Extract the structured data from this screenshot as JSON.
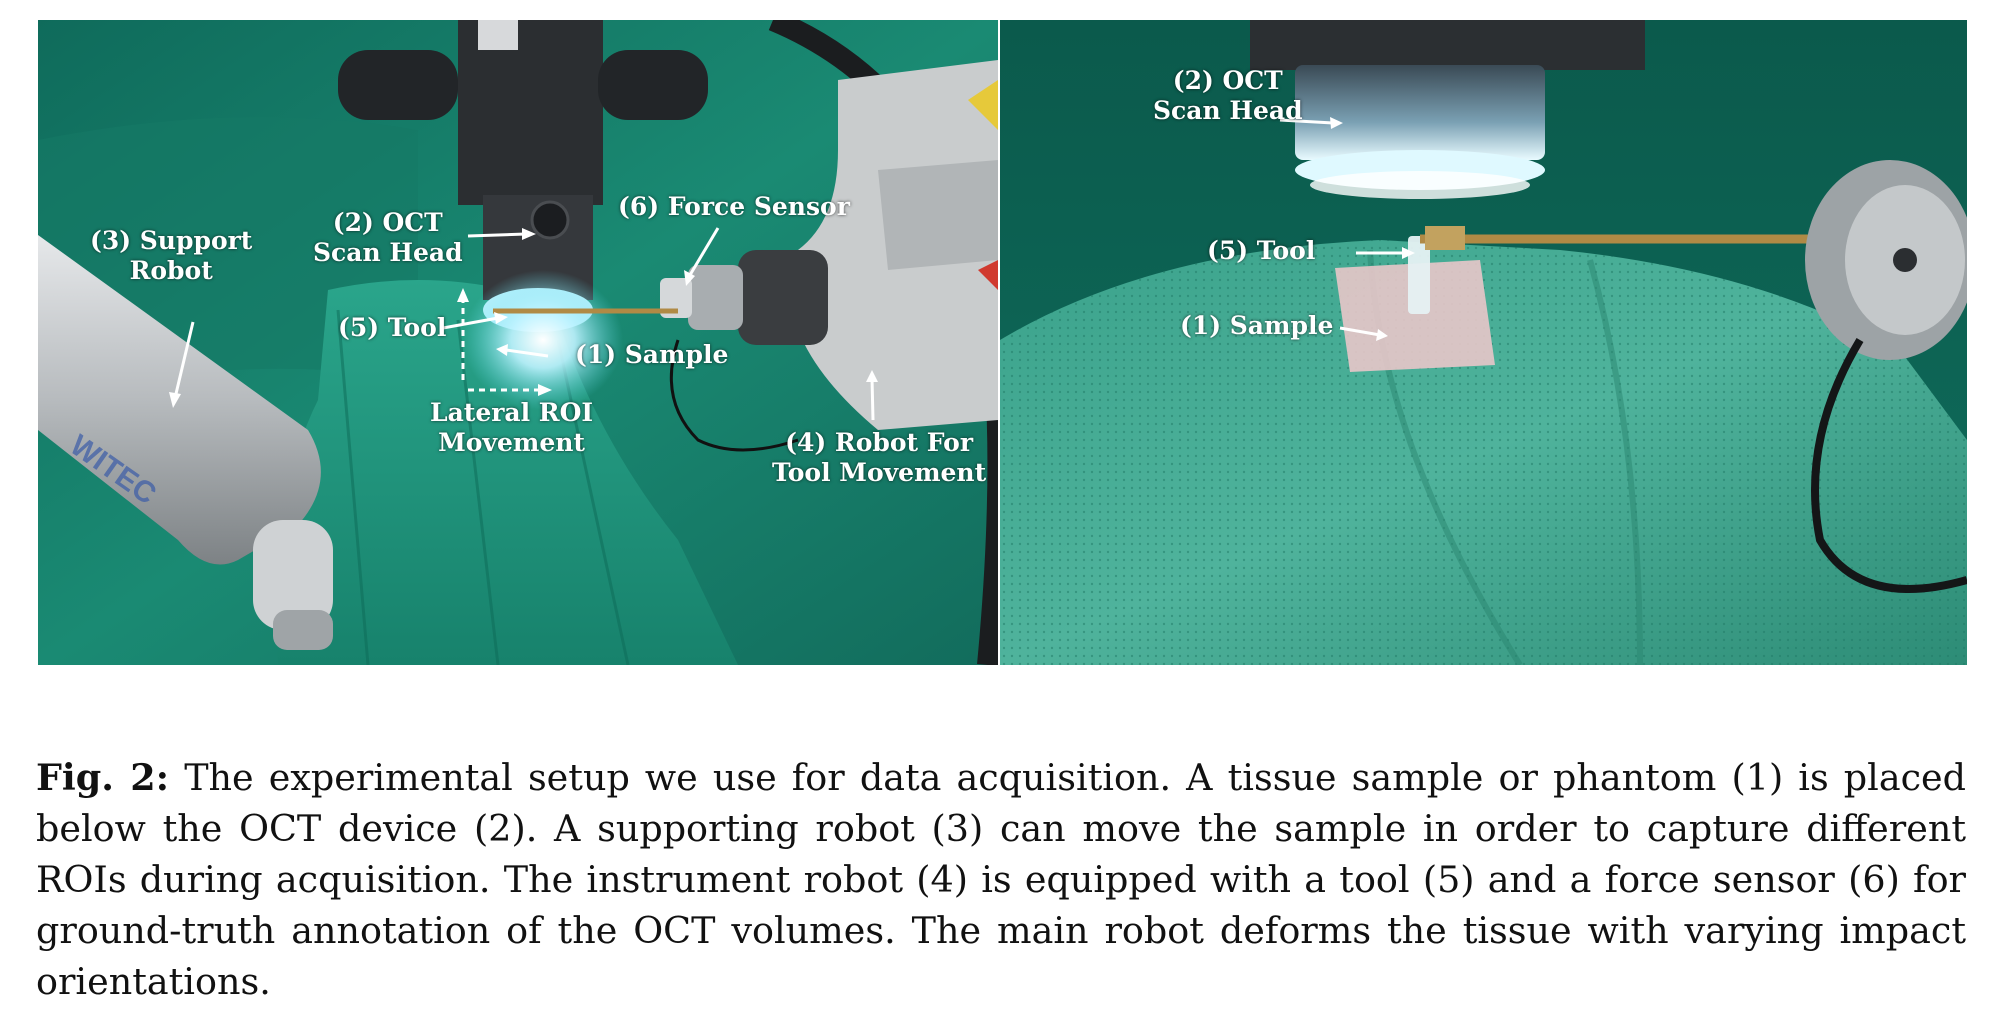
{
  "figure": {
    "left_panel_labels": {
      "support_robot": [
        "(3) Support",
        "Robot"
      ],
      "oct_scan_head": [
        "(2) OCT",
        "Scan Head"
      ],
      "force_sensor": "(6) Force Sensor",
      "tool": "(5) Tool",
      "sample": "(1) Sample",
      "lateral_roi": [
        "Lateral ROI",
        "Movement"
      ],
      "robot_tool": [
        "(4) Robot For",
        "Tool Movement"
      ]
    },
    "right_panel_labels": {
      "oct_scan_head": [
        "(2) OCT",
        "Scan Head"
      ],
      "tool": "(5) Tool",
      "sample": "(1) Sample"
    }
  },
  "caption": {
    "label": "Fig. 2:",
    "text": " The experimental setup we use for data acquisition. A tissue sample or phantom (1) is placed below the OCT device (2). A supporting robot (3) can move the sample in order to capture different ROIs during acquisition. The instrument robot (4) is equipped with a tool (5) and a force sensor (6) for ground-truth annotation of the OCT volumes. The main robot deforms the tissue with varying impact orientations."
  },
  "colors": {
    "drape_green": "#1f8f78",
    "drape_dark": "#0d5f4f",
    "robot_grey": "#c9cccd",
    "oct_black": "#2b2e31",
    "light_cyan": "#bff3ff"
  }
}
